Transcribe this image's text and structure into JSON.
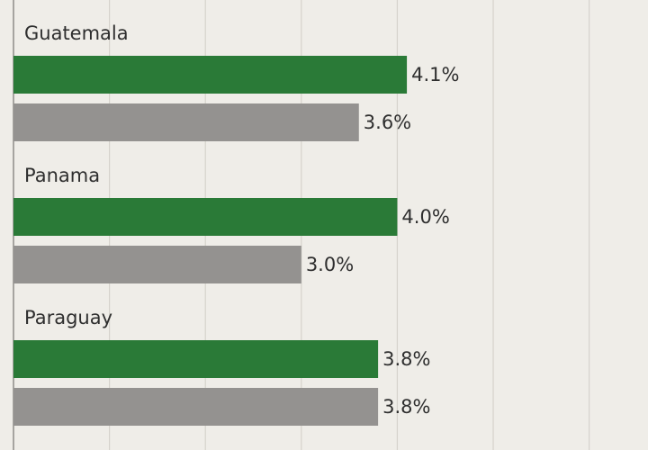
{
  "chart_data": {
    "type": "bar",
    "orientation": "horizontal",
    "categories": [
      "Guatemala",
      "Panama",
      "Paraguay"
    ],
    "series": [
      {
        "color": "#2a7a37",
        "values": [
          4.1,
          4.0,
          3.8
        ],
        "value_labels": [
          "4.1%",
          "4.0%",
          "3.8%"
        ]
      },
      {
        "color": "#949290",
        "values": [
          3.6,
          3.0,
          3.8
        ],
        "value_labels": [
          "3.6%",
          "3.0%",
          "3.8%"
        ]
      }
    ],
    "xlim": [
      0,
      6.6
    ],
    "xticks": [
      0,
      1,
      2,
      3,
      4,
      5,
      6
    ],
    "grid": true
  }
}
